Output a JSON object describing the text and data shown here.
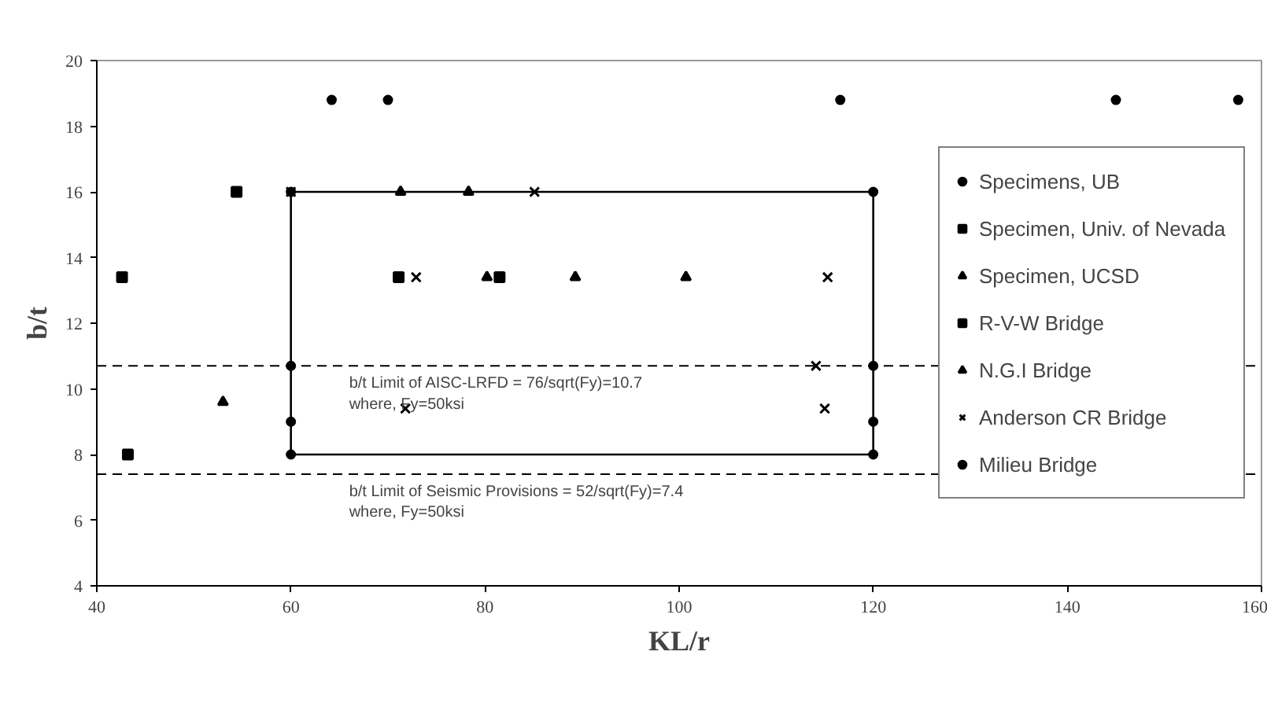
{
  "chart_data": {
    "type": "scatter",
    "xlabel": "KL/r",
    "ylabel": "b/t",
    "xlim": [
      40,
      160
    ],
    "xticks": [
      40,
      60,
      80,
      100,
      120,
      140,
      160
    ],
    "ylim": [
      4,
      20
    ],
    "yticks": [
      4,
      6,
      8,
      10,
      12,
      14,
      16,
      18,
      20
    ],
    "grid": false,
    "legend": "right",
    "series": [
      {
        "name": "Specimens, UB",
        "color": "#000000",
        "marker": "circle",
        "x": [
          60,
          60,
          60,
          60,
          120,
          120,
          120,
          120
        ],
        "values": [
          16,
          10.7,
          9,
          8,
          16,
          10.7,
          9,
          8
        ]
      },
      {
        "name": "Specimen, Univ. of Nevada",
        "color": "#000000",
        "marker": "square",
        "x": [
          43.2
        ],
        "values": [
          8
        ]
      },
      {
        "name": "Specimen, UCSD",
        "color": "#000000",
        "marker": "triangle",
        "x": [
          53.0
        ],
        "values": [
          9.6
        ]
      },
      {
        "name": "R-V-W Bridge",
        "color": "#000000",
        "marker": "square",
        "x": [
          42.6,
          54.4,
          71.1,
          81.5
        ],
        "values": [
          13.4,
          16,
          13.4,
          13.4
        ]
      },
      {
        "name": "N.G.I Bridge",
        "color": "#000000",
        "marker": "triangle",
        "x": [
          71.3,
          78.3,
          80.2,
          89.3,
          100.7
        ],
        "values": [
          16,
          16,
          13.4,
          13.4,
          13.4
        ]
      },
      {
        "name": "Anderson CR Bridge",
        "color": "#000000",
        "marker": "cross",
        "x": [
          60,
          72.9,
          85.1,
          115.3,
          114.1,
          115.0,
          71.8
        ],
        "values": [
          16,
          13.4,
          16,
          13.4,
          10.7,
          9.4,
          9.4
        ]
      },
      {
        "name": "Milieu Bridge",
        "color": "#000000",
        "marker": "circle",
        "x": [
          64.2,
          70.0,
          116.6,
          145.0,
          157.6
        ],
        "values": [
          18.8,
          18.8,
          18.8,
          18.8,
          18.8
        ]
      }
    ],
    "ref_lines": [
      {
        "axis": "y",
        "value": 10.7,
        "label": "b/t Limit of AISC-LRFD = 76/sqrt(Fy)=10.7\n where, Fy=50ksi",
        "color": "#000000",
        "line_style": "dashed"
      },
      {
        "axis": "y",
        "value": 7.4,
        "label": "b/t Limit of Seismic Provisions = 52/sqrt(Fy)=7.4\n  where, Fy=50ksi",
        "color": "#000000",
        "line_style": "dashed"
      }
    ]
  }
}
